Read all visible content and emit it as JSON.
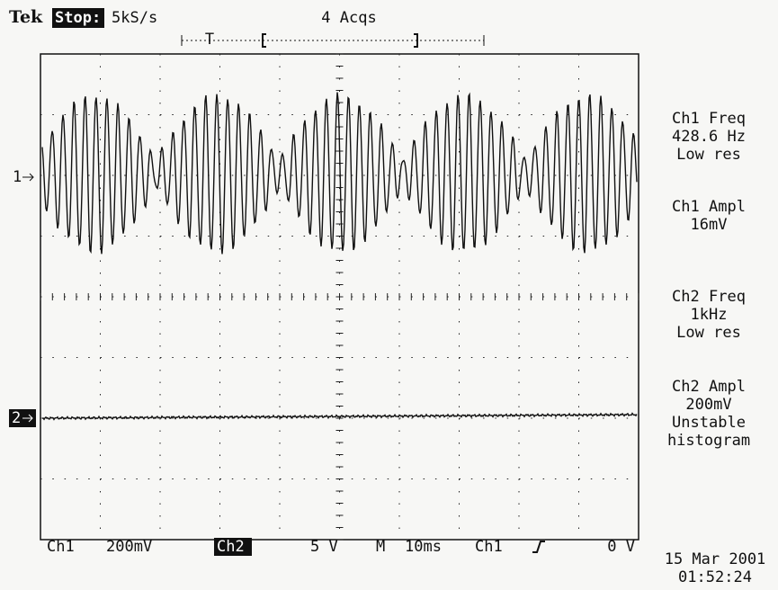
{
  "header": {
    "brand": "Tek",
    "state": "Stop:",
    "rate": "5kS/s",
    "acquisitions": "4 Acqs",
    "trigger": "T"
  },
  "markers": {
    "ch1": "1",
    "ch2": "2"
  },
  "readouts": [
    {
      "lines": [
        "Ch1 Freq",
        "428.6 Hz",
        "Low res"
      ]
    },
    {
      "lines": [
        "Ch1 Ampl",
        "16mV"
      ]
    },
    {
      "lines": [
        "Ch2 Freq",
        "1kHz",
        "Low res"
      ]
    },
    {
      "lines": [
        "Ch2 Ampl",
        "200mV",
        "Unstable",
        "histogram"
      ]
    }
  ],
  "footer": {
    "ch1_label": "Ch1",
    "ch1_scale": "200mV",
    "ch2_label": "Ch2",
    "ch2_scale": "5 V",
    "time_label": "M",
    "time_scale": "10ms",
    "trigger_source": "Ch1",
    "trigger_level": "0 V",
    "date": "15 Mar 2001",
    "time": "01:52:24"
  }
}
